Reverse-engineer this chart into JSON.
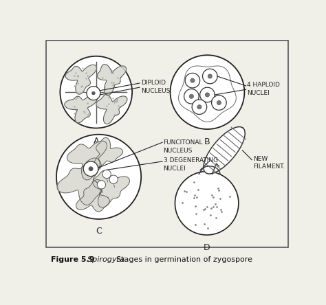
{
  "bg_color": "#f0efe8",
  "border_color": "#555555",
  "line_color": "#222222",
  "light_gray": "#cccccc",
  "dark_gray": "#888888",
  "white": "#ffffff",
  "labels": {
    "A": "A",
    "B": "B",
    "C": "C",
    "D": "D",
    "diploid_nucleus": "DIPLOID\nNUCLEUS",
    "haploid_nuclei": "4 HAPLOID\nNUCLEI",
    "functional_nucleus": "FUNCITONAL\nNUCLEUS",
    "degenerating_nuclei": "3 DEGENERATING\nNUCLEI",
    "new_filament": "NEW\nFILAMENT."
  },
  "caption_bold": "Figure 5.9",
  "caption_italic": "  Spirogyra.",
  "caption_normal": "  Stages in germination of zygospore"
}
